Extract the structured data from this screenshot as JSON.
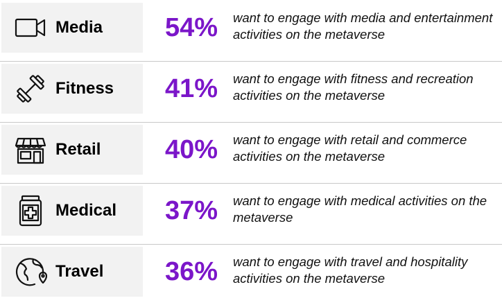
{
  "colors": {
    "accent": "#7b16c9",
    "panel": "#f2f2f2",
    "text": "#111111"
  },
  "rows": [
    {
      "icon": "video-camera-icon",
      "label": "Media",
      "percent": "54%",
      "description": "want to engage with media and entertainment activities on the metaverse"
    },
    {
      "icon": "dumbbell-icon",
      "label": "Fitness",
      "percent": "41%",
      "description": "want to engage with fitness and recreation activities on the metaverse"
    },
    {
      "icon": "storefront-icon",
      "label": "Retail",
      "percent": "40%",
      "description": "want to engage with retail and commerce activities on the metaverse"
    },
    {
      "icon": "medicine-jar-icon",
      "label": "Medical",
      "percent": "37%",
      "description": "want to engage with medical activities on the metaverse"
    },
    {
      "icon": "globe-pin-icon",
      "label": "Travel",
      "percent": "36%",
      "description": "want to engage with travel and hospitality activities on the metaverse"
    }
  ]
}
